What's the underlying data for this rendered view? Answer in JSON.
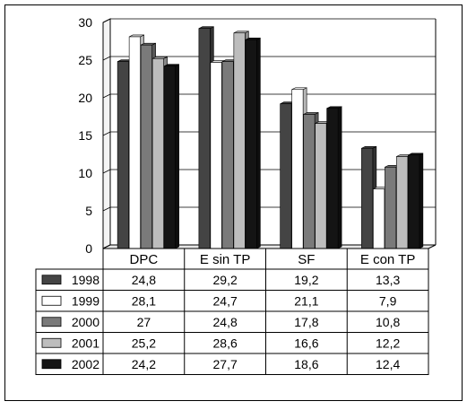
{
  "chart_data": {
    "type": "bar",
    "layout_hint": "3d-grouped-bar-with-data-table",
    "categories": [
      "DPC",
      "E sin TP",
      "SF",
      "E con TP"
    ],
    "ylim": [
      0,
      30
    ],
    "yticks": [
      "0",
      "5",
      "10",
      "15",
      "20",
      "25",
      "30"
    ],
    "grid": true,
    "legend": "in-table-left",
    "series": [
      {
        "name": "1998",
        "values": [
          24.8,
          29.2,
          19.2,
          13.3
        ],
        "labels": [
          "24,8",
          "29,2",
          "19,2",
          "13,3"
        ],
        "color": "#444444"
      },
      {
        "name": "1999",
        "values": [
          28.1,
          24.7,
          21.1,
          7.9
        ],
        "labels": [
          "28,1",
          "24,7",
          "21,1",
          "7,9"
        ],
        "color": "#ffffff"
      },
      {
        "name": "2000",
        "values": [
          27,
          24.8,
          17.8,
          10.8
        ],
        "labels": [
          "27",
          "24,8",
          "17,8",
          "10,8"
        ],
        "color": "#7a7a7a"
      },
      {
        "name": "2001",
        "values": [
          25.2,
          28.6,
          16.6,
          12.2
        ],
        "labels": [
          "25,2",
          "28,6",
          "16,6",
          "12,2"
        ],
        "color": "#bdbdbd"
      },
      {
        "name": "2002",
        "values": [
          24.2,
          27.7,
          18.6,
          12.4
        ],
        "labels": [
          "24,2",
          "27,7",
          "18,6",
          "12,4"
        ],
        "color": "#141414"
      }
    ]
  }
}
